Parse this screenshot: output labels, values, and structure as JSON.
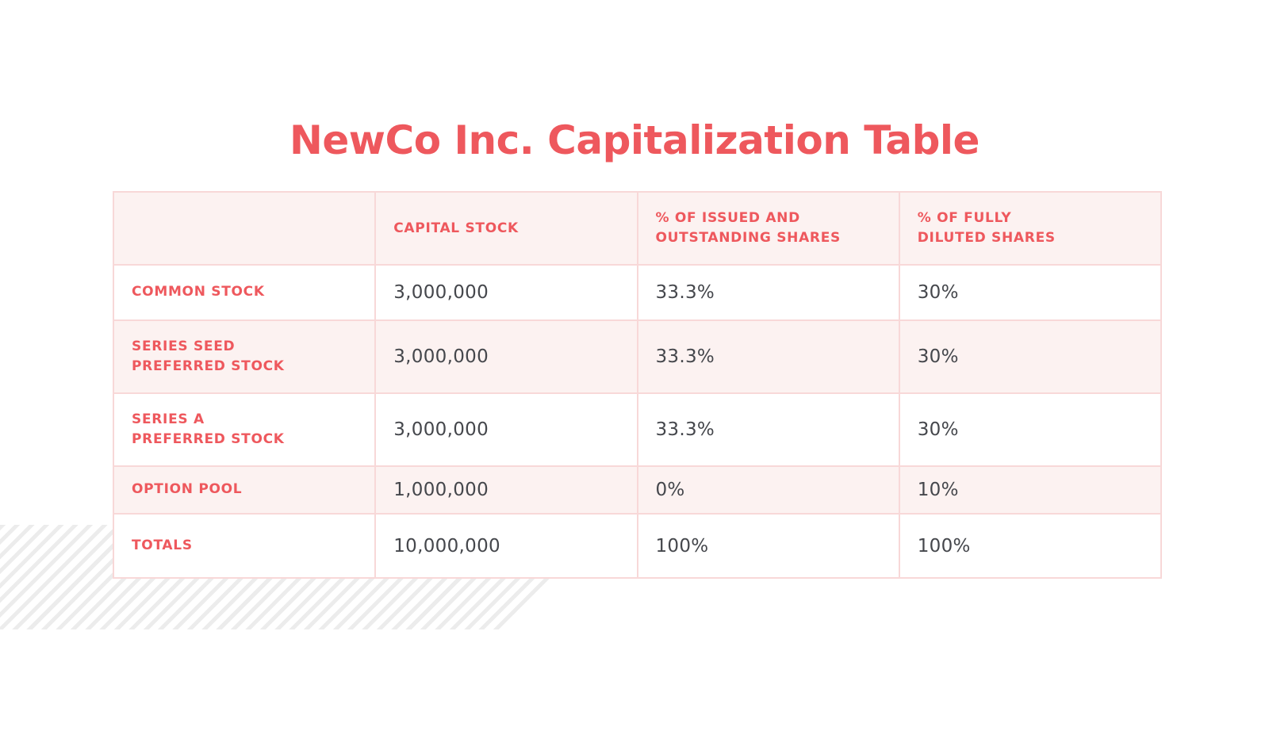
{
  "title": {
    "text": "NewCo Inc. Capitalization Table"
  },
  "colors": {
    "accent_red": "#ee585d",
    "row_pink_background": "#fcf2f1",
    "table_border_pink": "#f8d8d8",
    "value_text": "#45474c",
    "stripe_gray": "#ececec",
    "page_background": "#ffffff"
  },
  "table": {
    "columns": [
      "",
      "CAPITAL STOCK",
      "% OF ISSUED AND\nOUTSTANDING SHARES",
      "% OF FULLY\nDILUTED SHARES"
    ],
    "rows": [
      {
        "label": "COMMON STOCK",
        "capital_stock": "3,000,000",
        "pct_issued_outstanding": "33.3%",
        "pct_fully_diluted": "30%"
      },
      {
        "label": "SERIES SEED\nPREFERRED STOCK",
        "capital_stock": "3,000,000",
        "pct_issued_outstanding": "33.3%",
        "pct_fully_diluted": "30%"
      },
      {
        "label": "SERIES A\nPREFERRED STOCK",
        "capital_stock": "3,000,000",
        "pct_issued_outstanding": "33.3%",
        "pct_fully_diluted": "30%"
      },
      {
        "label": "OPTION POOL",
        "capital_stock": "1,000,000",
        "pct_issued_outstanding": "0%",
        "pct_fully_diluted": "10%"
      },
      {
        "label": "TOTALS",
        "capital_stock": "10,000,000",
        "pct_issued_outstanding": "100%",
        "pct_fully_diluted": "100%"
      }
    ]
  },
  "chart_data": {
    "type": "table",
    "title": "NewCo Inc. Capitalization Table",
    "columns": [
      "",
      "Capital Stock",
      "% of Issued and Outstanding Shares",
      "% of Fully Diluted Shares"
    ],
    "rows": [
      [
        "Common Stock",
        3000000,
        "33.3%",
        "30%"
      ],
      [
        "Series Seed Preferred Stock",
        3000000,
        "33.3%",
        "30%"
      ],
      [
        "Series A Preferred Stock",
        3000000,
        "33.3%",
        "30%"
      ],
      [
        "Option Pool",
        1000000,
        "0%",
        "10%"
      ],
      [
        "Totals",
        10000000,
        "100%",
        "100%"
      ]
    ]
  }
}
